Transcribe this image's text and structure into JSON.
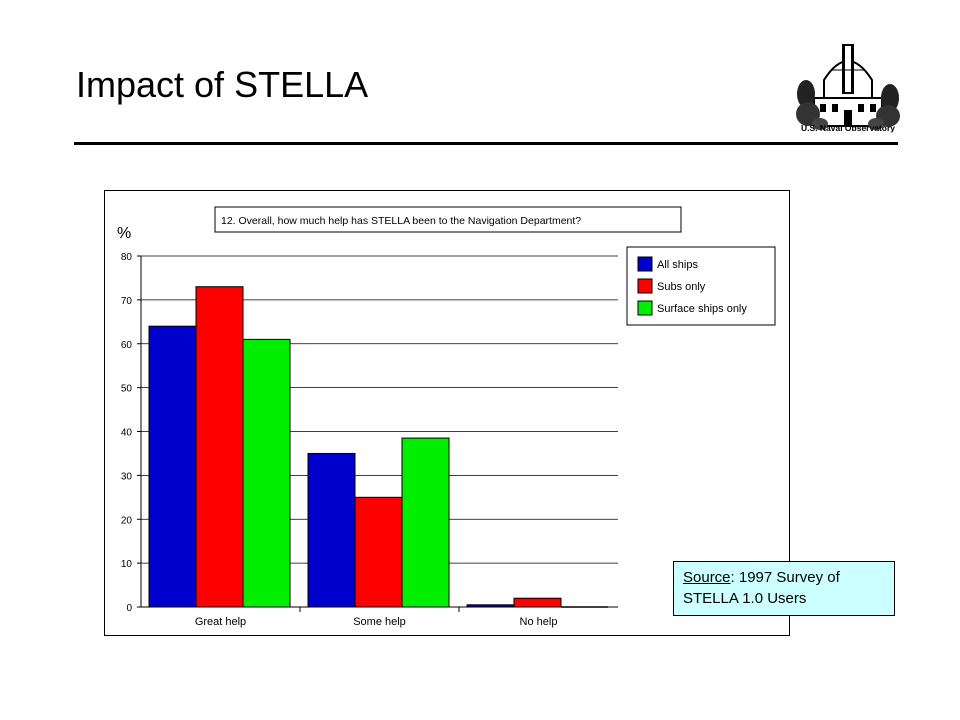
{
  "slide": {
    "title": "Impact of STELLA"
  },
  "logo": {
    "caption": "U.S. Naval Observatory"
  },
  "source_note": {
    "label": "Source",
    "text": ": 1997 Survey of",
    "line2": "STELLA 1.0 Users"
  },
  "chart_data": {
    "type": "bar",
    "title": "12. Overall, how much help has STELLA been to the Navigation Department?",
    "ylabel": "%",
    "xlabel": "",
    "ylim": [
      0,
      80
    ],
    "yticks": [
      0,
      10,
      20,
      30,
      40,
      50,
      60,
      70,
      80
    ],
    "grid": true,
    "legend_position": "top-right",
    "categories": [
      "Great help",
      "Some help",
      "No help"
    ],
    "series": [
      {
        "name": "All ships",
        "color": "#0000cc",
        "values": [
          64,
          35,
          0.5
        ]
      },
      {
        "name": "Subs only",
        "color": "#ff0000",
        "values": [
          73,
          25,
          2
        ]
      },
      {
        "name": "Surface ships only",
        "color": "#00ee00",
        "values": [
          61,
          38.5,
          0
        ]
      }
    ]
  }
}
